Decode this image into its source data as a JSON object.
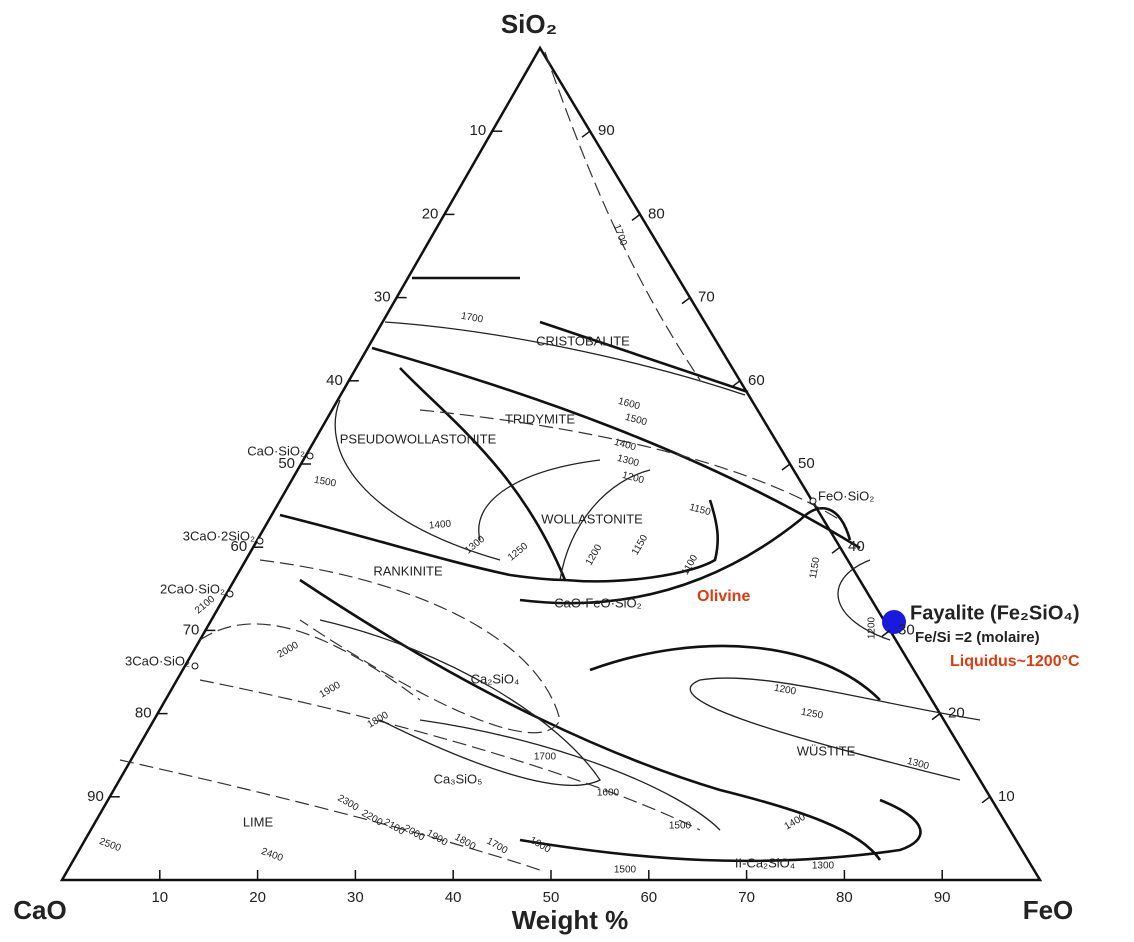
{
  "corners": {
    "top": "SiO₂",
    "left": "CaO",
    "right": "FeO"
  },
  "axis_title": "Weight %",
  "bottom_ticks": [
    10,
    20,
    30,
    40,
    50,
    60,
    70,
    80,
    90
  ],
  "left_ticks": [
    10,
    20,
    30,
    40,
    50,
    60,
    70,
    80,
    90
  ],
  "right_ticks": [
    10,
    20,
    30,
    40,
    50,
    60,
    70,
    80,
    90
  ],
  "phases": [
    "CRISTOBALITE",
    "TRIDYMITE",
    "PSEUDOWOLLASTONITE",
    "WOLLASTONITE",
    "RANKINITE",
    "CaO·FeO·SiO₂",
    "Ca₂SiO₄",
    "Ca₃SiO₅",
    "LIME",
    "WÜSTITE",
    "II-Ca₂SiO₄"
  ],
  "compounds": [
    "CaO·SiO₂",
    "3CaO·2SiO₂",
    "2CaO·SiO₂",
    "3CaO·SiO₂",
    "FeO·SiO₂"
  ],
  "isotherms": [
    "1700",
    "1700",
    "1600",
    "1500",
    "1400",
    "1300",
    "1200",
    "1150",
    "1500",
    "1400",
    "1300",
    "1250",
    "1200",
    "1150",
    "1100",
    "1150",
    "1200",
    "1200",
    "1250",
    "1300",
    "2100",
    "2000",
    "1900",
    "1800",
    "1700",
    "1600",
    "1500",
    "1400",
    "1300",
    "1500",
    "2500",
    "2400",
    "2300",
    "2200",
    "2100",
    "2000",
    "1900",
    "1800",
    "1700",
    "1600"
  ],
  "annotations": {
    "olivine": "Olivine",
    "fayalite": "Fayalite (Fe₂SiO₄)",
    "ratio": "Fe/Si =2 (molaire)",
    "liquidus": "Liquidus~1200°C"
  }
}
